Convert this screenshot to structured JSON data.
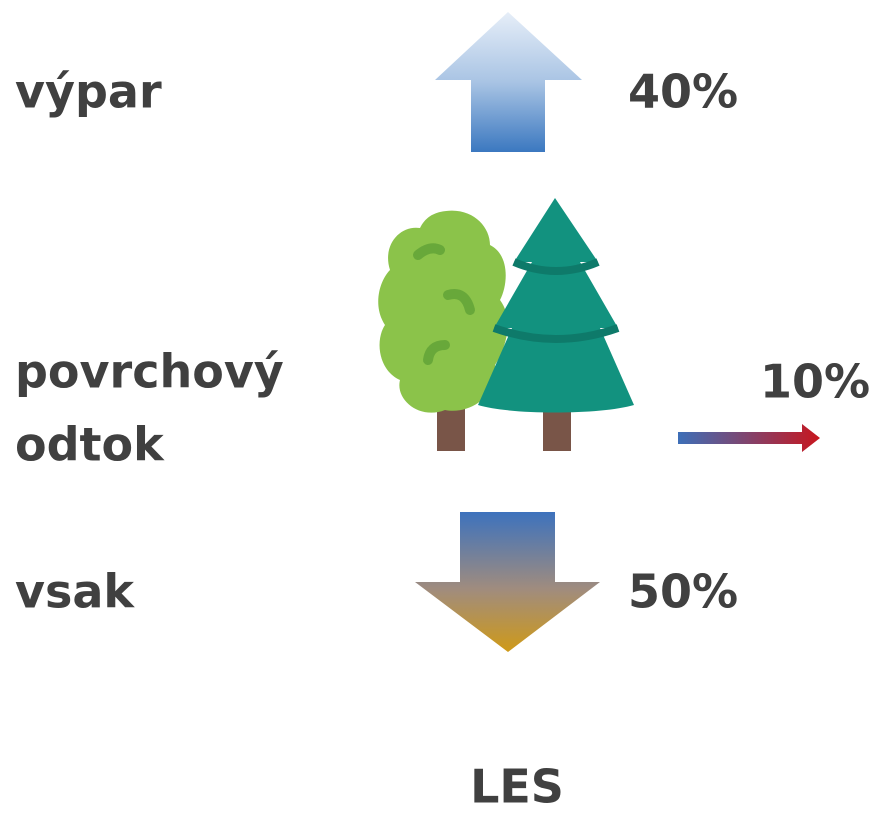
{
  "evaporation": {
    "label": "výpar",
    "percent": "40%"
  },
  "runoff": {
    "label_lines": [
      "povrchový",
      "odtok"
    ],
    "percent": "10%"
  },
  "infiltration": {
    "label": "vsak",
    "percent": "50%"
  },
  "caption": "LES"
}
